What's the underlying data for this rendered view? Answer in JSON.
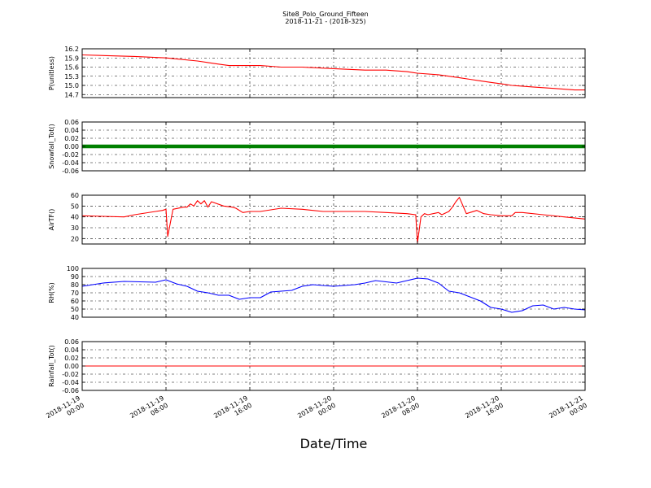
{
  "figure": {
    "title": "Site8_Polo_Ground_Fifteen",
    "subtitle": "2018-11-21 - (2018-325)",
    "xlabel": "Date/Time"
  },
  "x_axis": {
    "range": [
      "2018-11-19 00:00",
      "2018-11-21 00:00"
    ],
    "ticks": [
      {
        "value": "2018-11-19 00:00",
        "line1": "2018-11-19",
        "line2": "00:00"
      },
      {
        "value": "2018-11-19 08:00",
        "line1": "2018-11-19",
        "line2": "08:00"
      },
      {
        "value": "2018-11-19 16:00",
        "line1": "2018-11-19",
        "line2": "16:00"
      },
      {
        "value": "2018-11-20 00:00",
        "line1": "2018-11-20",
        "line2": "00:00"
      },
      {
        "value": "2018-11-20 08:00",
        "line1": "2018-11-20",
        "line2": "08:00"
      },
      {
        "value": "2018-11-20 16:00",
        "line1": "2018-11-20",
        "line2": "16:00"
      },
      {
        "value": "2018-11-21 00:00",
        "line1": "2018-11-21",
        "line2": "00:00"
      }
    ]
  },
  "chart_data": [
    {
      "type": "line",
      "ylabel": "P(unitless)",
      "ylim": [
        14.6,
        16.2
      ],
      "yticks": [
        "16.2",
        "15.9",
        "15.6",
        "15.3",
        "15.0",
        "14.7"
      ],
      "color": "#ff0000",
      "grid": true,
      "x": [
        "2018-11-19 00:00",
        "2018-11-19 05:00",
        "2018-11-19 08:00",
        "2018-11-19 09:30",
        "2018-11-19 11:00",
        "2018-11-19 12:00",
        "2018-11-19 13:00",
        "2018-11-19 14:00",
        "2018-11-19 17:00",
        "2018-11-19 19:00",
        "2018-11-19 21:00",
        "2018-11-20 00:00",
        "2018-11-20 03:00",
        "2018-11-20 05:00",
        "2018-11-20 07:00",
        "2018-11-20 08:00",
        "2018-11-20 10:00",
        "2018-11-20 11:00",
        "2018-11-20 12:00",
        "2018-11-20 13:00",
        "2018-11-20 14:00",
        "2018-11-20 15:00",
        "2018-11-20 16:00",
        "2018-11-20 17:00",
        "2018-11-20 19:00",
        "2018-11-20 21:00",
        "2018-11-20 23:00",
        "2018-11-21 00:00"
      ],
      "y": [
        16.0,
        15.95,
        15.9,
        15.85,
        15.8,
        15.75,
        15.7,
        15.65,
        15.65,
        15.6,
        15.6,
        15.55,
        15.5,
        15.5,
        15.45,
        15.4,
        15.35,
        15.3,
        15.25,
        15.2,
        15.15,
        15.1,
        15.05,
        15.0,
        14.95,
        14.9,
        14.85,
        14.85
      ]
    },
    {
      "type": "scatter",
      "ylabel": "Snowfall_Tot()",
      "ylim": [
        -0.06,
        0.06
      ],
      "yticks": [
        "0.06",
        "0.04",
        "0.02",
        "0.00",
        "-0.02",
        "-0.04",
        "-0.06"
      ],
      "color": "#008000",
      "grid": true,
      "x": [
        "2018-11-19 00:00",
        "2018-11-21 00:00"
      ],
      "y": [
        0.0,
        0.0
      ]
    },
    {
      "type": "line",
      "ylabel": "AirTF()",
      "ylim": [
        15,
        60
      ],
      "yticks": [
        "60",
        "50",
        "40",
        "30",
        "20"
      ],
      "color": "#ff0000",
      "grid": true,
      "x": [
        "2018-11-19 00:00",
        "2018-11-19 02:00",
        "2018-11-19 04:00",
        "2018-11-19 05:00",
        "2018-11-19 07:00",
        "2018-11-19 07:40",
        "2018-11-19 08:00",
        "2018-11-19 08:10",
        "2018-11-19 08:40",
        "2018-11-19 09:40",
        "2018-11-19 10:00",
        "2018-11-19 10:20",
        "2018-11-19 10:40",
        "2018-11-19 11:00",
        "2018-11-19 11:20",
        "2018-11-19 11:40",
        "2018-11-19 12:00",
        "2018-11-19 12:20",
        "2018-11-19 13:30",
        "2018-11-19 14:20",
        "2018-11-19 14:40",
        "2018-11-19 15:20",
        "2018-11-19 16:00",
        "2018-11-19 17:00",
        "2018-11-19 19:00",
        "2018-11-19 21:00",
        "2018-11-19 23:00",
        "2018-11-20 03:00",
        "2018-11-20 05:00",
        "2018-11-20 07:00",
        "2018-11-20 07:50",
        "2018-11-20 08:00",
        "2018-11-20 08:20",
        "2018-11-20 08:40",
        "2018-11-20 09:00",
        "2018-11-20 10:00",
        "2018-11-20 10:20",
        "2018-11-20 11:00",
        "2018-11-20 11:20",
        "2018-11-20 11:40",
        "2018-11-20 12:00",
        "2018-11-20 12:40",
        "2018-11-20 13:40",
        "2018-11-20 14:20",
        "2018-11-20 15:00",
        "2018-11-20 16:00",
        "2018-11-20 17:00",
        "2018-11-20 17:20",
        "2018-11-20 18:00",
        "2018-11-20 20:00",
        "2018-11-20 22:00",
        "2018-11-21 00:00"
      ],
      "y": [
        41,
        40.5,
        40,
        42,
        45,
        46,
        47,
        22,
        47,
        49,
        49,
        52,
        50,
        55,
        52,
        55,
        49,
        54,
        50,
        49,
        48,
        44,
        45,
        45,
        48,
        47,
        45,
        45,
        44,
        43,
        42,
        16,
        40,
        43,
        42,
        44,
        42,
        45,
        49,
        54,
        58,
        43,
        46,
        43,
        42,
        41,
        41,
        44,
        44,
        42,
        40,
        38
      ]
    },
    {
      "type": "line",
      "ylabel": "RH(%)",
      "ylim": [
        40,
        100
      ],
      "yticks": [
        "100",
        "90",
        "80",
        "70",
        "60",
        "50",
        "40"
      ],
      "color": "#0000ff",
      "grid": true,
      "x": [
        "2018-11-19 00:00",
        "2018-11-19 02:00",
        "2018-11-19 04:00",
        "2018-11-19 07:00",
        "2018-11-19 08:00",
        "2018-11-19 09:00",
        "2018-11-19 10:00",
        "2018-11-19 11:00",
        "2018-11-19 12:00",
        "2018-11-19 13:00",
        "2018-11-19 14:00",
        "2018-11-19 15:00",
        "2018-11-19 16:00",
        "2018-11-19 17:00",
        "2018-11-19 18:00",
        "2018-11-19 20:00",
        "2018-11-19 21:00",
        "2018-11-19 22:00",
        "2018-11-20 00:00",
        "2018-11-20 02:00",
        "2018-11-20 03:00",
        "2018-11-20 04:00",
        "2018-11-20 06:00",
        "2018-11-20 07:00",
        "2018-11-20 08:00",
        "2018-11-20 09:00",
        "2018-11-20 10:00",
        "2018-11-20 11:00",
        "2018-11-20 12:00",
        "2018-11-20 13:00",
        "2018-11-20 14:00",
        "2018-11-20 15:00",
        "2018-11-20 16:00",
        "2018-11-20 17:00",
        "2018-11-20 18:00",
        "2018-11-20 19:00",
        "2018-11-20 20:00",
        "2018-11-20 21:00",
        "2018-11-20 22:00",
        "2018-11-20 23:00",
        "2018-11-21 00:00"
      ],
      "y": [
        78,
        82,
        84,
        83,
        86,
        81,
        78,
        72,
        70,
        67,
        67,
        62,
        64,
        64,
        71,
        73,
        78,
        80,
        78,
        80,
        82,
        85,
        82,
        85,
        88,
        87,
        82,
        72,
        70,
        65,
        60,
        52,
        50,
        46,
        48,
        54,
        55,
        50,
        52,
        50,
        49
      ]
    },
    {
      "type": "line",
      "ylabel": "Rainfall_Tot()",
      "ylim": [
        -0.06,
        0.06
      ],
      "yticks": [
        "0.06",
        "0.04",
        "0.02",
        "0.00",
        "-0.02",
        "-0.04",
        "-0.06"
      ],
      "color": "#ff0000",
      "grid": true,
      "x": [
        "2018-11-19 00:00",
        "2018-11-21 00:00"
      ],
      "y": [
        0.0,
        0.0
      ]
    }
  ]
}
